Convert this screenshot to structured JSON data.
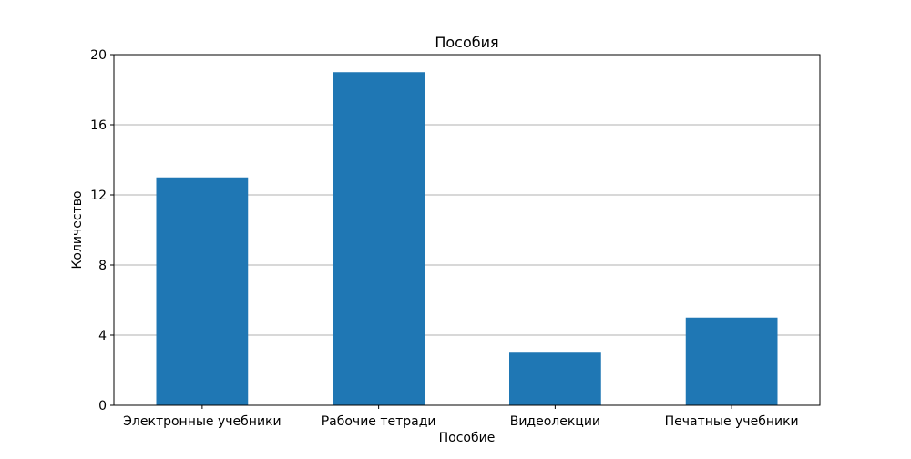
{
  "chart_data": {
    "type": "bar",
    "title": "Пособия",
    "xlabel": "Пособие",
    "ylabel": "Количество",
    "categories": [
      "Электронные учебники",
      "Рабочие тетради",
      "Видеолекции",
      "Печатные учебники"
    ],
    "values": [
      13,
      19,
      3,
      5
    ],
    "ylim": [
      0,
      20
    ],
    "yticks": [
      0,
      4,
      8,
      12,
      16,
      20
    ],
    "grid": "y",
    "legend": "none",
    "bar_color": "#1f77b4",
    "grid_color": "#b0b0b0"
  }
}
